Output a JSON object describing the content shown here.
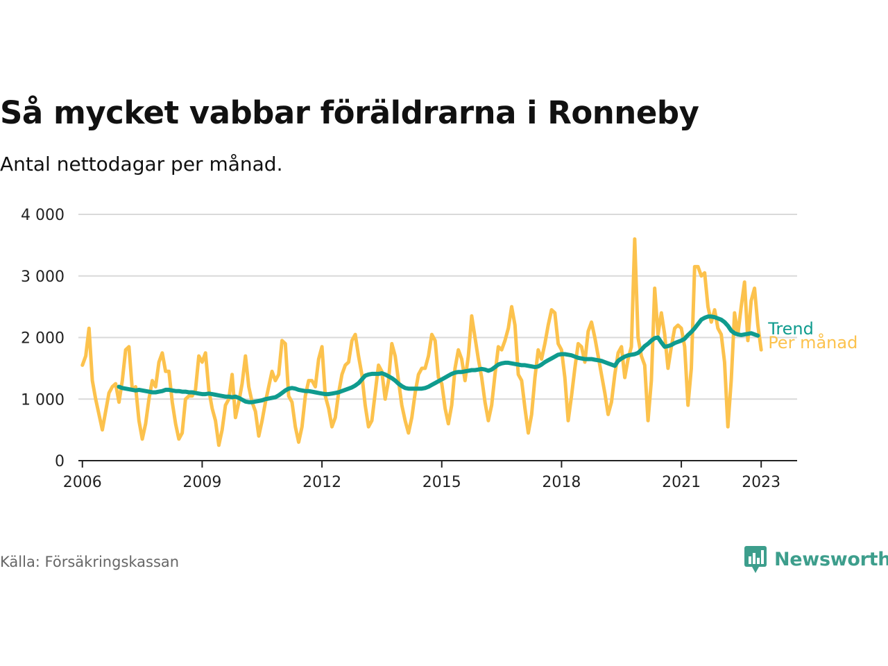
{
  "header": {
    "title": "Så mycket vabbar föräldrarna i Ronneby",
    "subtitle": "Antal nettodagar per månad."
  },
  "footer": {
    "source": "Källa: Försäkringskassan",
    "brand": "Newsworthy"
  },
  "colors": {
    "monthly": "#fcc24d",
    "trend": "#0f9b8e",
    "grid": "#d9d9d9",
    "axis": "#222222",
    "brand": "#3d9e8c"
  },
  "chart_data": {
    "type": "line",
    "title": "Så mycket vabbar föräldrarna i Ronneby",
    "subtitle": "Antal nettodagar per månad.",
    "ylim": [
      0,
      4000
    ],
    "yticks": [
      0,
      1000,
      2000,
      3000,
      4000
    ],
    "ytick_labels": [
      "0",
      "1 000",
      "2 000",
      "3 000",
      "4 000"
    ],
    "xlim": [
      2005.9,
      2023.9
    ],
    "xticks": [
      2006,
      2009,
      2012,
      2015,
      2018,
      2021,
      2023
    ],
    "xtick_labels": [
      "2006",
      "2009",
      "2012",
      "2015",
      "2018",
      "2021",
      "2023"
    ],
    "grid": true,
    "legend": "end-of-line labels",
    "series": [
      {
        "name": "Per månad",
        "x_start": 2006.0,
        "x_step_months": 1,
        "values": [
          1550,
          1700,
          2150,
          1300,
          1000,
          750,
          500,
          800,
          1100,
          1200,
          1250,
          950,
          1300,
          1800,
          1850,
          1150,
          1200,
          650,
          350,
          600,
          1000,
          1300,
          1200,
          1600,
          1750,
          1450,
          1450,
          950,
          600,
          350,
          450,
          1000,
          1050,
          1050,
          1150,
          1700,
          1600,
          1750,
          1150,
          850,
          650,
          250,
          500,
          900,
          1000,
          1400,
          700,
          950,
          1250,
          1700,
          1200,
          950,
          800,
          400,
          650,
          950,
          1200,
          1450,
          1300,
          1400,
          1950,
          1900,
          1050,
          950,
          550,
          300,
          550,
          1050,
          1300,
          1300,
          1200,
          1650,
          1850,
          1050,
          850,
          550,
          700,
          1100,
          1400,
          1550,
          1600,
          1950,
          2050,
          1700,
          1400,
          900,
          550,
          650,
          1100,
          1550,
          1450,
          1000,
          1300,
          1900,
          1700,
          1300,
          900,
          650,
          450,
          700,
          1100,
          1400,
          1500,
          1500,
          1700,
          2050,
          1950,
          1350,
          1250,
          850,
          600,
          900,
          1500,
          1800,
          1650,
          1300,
          1700,
          2350,
          2000,
          1650,
          1350,
          950,
          650,
          900,
          1400,
          1850,
          1800,
          1950,
          2150,
          2500,
          2200,
          1400,
          1300,
          850,
          450,
          750,
          1350,
          1800,
          1650,
          1900,
          2200,
          2450,
          2400,
          1900,
          1800,
          1350,
          650,
          1050,
          1500,
          1900,
          1850,
          1600,
          2100,
          2250,
          2000,
          1700,
          1400,
          1100,
          750,
          950,
          1400,
          1750,
          1850,
          1350,
          1650,
          1850,
          3600,
          2000,
          1700,
          1550,
          650,
          1300,
          2800,
          2050,
          2400,
          2050,
          1500,
          1850,
          2150,
          2200,
          2150,
          1850,
          900,
          1500,
          3150,
          3150,
          3000,
          3050,
          2500,
          2250,
          2450,
          2150,
          2050,
          1600,
          550,
          1300,
          2400,
          2050,
          2500,
          2900,
          1950,
          2600,
          2800,
          2200,
          1800
        ]
      },
      {
        "name": "Trend",
        "x_start": 2006.9167,
        "x_step_months": 1,
        "values": [
          1200,
          1180,
          1170,
          1160,
          1150,
          1140,
          1150,
          1140,
          1130,
          1120,
          1110,
          1110,
          1120,
          1130,
          1150,
          1150,
          1140,
          1130,
          1130,
          1120,
          1120,
          1110,
          1110,
          1100,
          1090,
          1080,
          1080,
          1090,
          1080,
          1070,
          1060,
          1050,
          1040,
          1040,
          1030,
          1040,
          1020,
          990,
          960,
          950,
          950,
          960,
          970,
          980,
          1000,
          1010,
          1020,
          1030,
          1060,
          1100,
          1140,
          1170,
          1180,
          1170,
          1150,
          1140,
          1130,
          1130,
          1120,
          1110,
          1100,
          1090,
          1080,
          1080,
          1090,
          1100,
          1110,
          1130,
          1150,
          1170,
          1190,
          1220,
          1260,
          1320,
          1380,
          1400,
          1410,
          1410,
          1410,
          1420,
          1400,
          1370,
          1340,
          1300,
          1250,
          1210,
          1180,
          1170,
          1170,
          1170,
          1170,
          1170,
          1180,
          1200,
          1230,
          1260,
          1290,
          1320,
          1350,
          1380,
          1410,
          1430,
          1440,
          1440,
          1450,
          1460,
          1470,
          1470,
          1480,
          1490,
          1480,
          1460,
          1480,
          1520,
          1560,
          1580,
          1590,
          1590,
          1580,
          1570,
          1560,
          1550,
          1550,
          1540,
          1530,
          1520,
          1530,
          1560,
          1600,
          1630,
          1660,
          1690,
          1720,
          1730,
          1730,
          1720,
          1710,
          1690,
          1670,
          1660,
          1650,
          1650,
          1650,
          1640,
          1630,
          1620,
          1600,
          1580,
          1560,
          1540,
          1620,
          1660,
          1690,
          1710,
          1720,
          1730,
          1750,
          1800,
          1860,
          1900,
          1950,
          1990,
          2000,
          1920,
          1850,
          1860,
          1880,
          1910,
          1930,
          1950,
          1980,
          2040,
          2090,
          2150,
          2220,
          2290,
          2320,
          2340,
          2340,
          2330,
          2310,
          2290,
          2250,
          2190,
          2110,
          2070,
          2050,
          2040,
          2050,
          2060,
          2070,
          2050,
          2030
        ]
      }
    ],
    "end_labels": [
      "Trend",
      "Per månad"
    ]
  }
}
